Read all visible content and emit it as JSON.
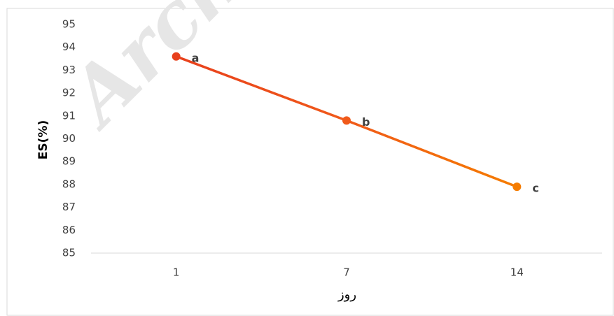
{
  "chart_data": {
    "type": "line",
    "watermark": "Arch",
    "xlabel": "روز",
    "ylabel": "ES(%)",
    "categories": [
      "1",
      "7",
      "14"
    ],
    "series": [
      {
        "name": "ES",
        "color": "#f57c00",
        "point_colors": [
          "#e8401c",
          "#f05a1a",
          "#f57c00"
        ],
        "values": [
          93.6,
          90.8,
          87.9
        ],
        "point_labels": [
          "a",
          "b",
          "c"
        ]
      }
    ],
    "ylim": [
      85,
      95
    ],
    "yticks": [
      85,
      86,
      87,
      88,
      89,
      90,
      91,
      92,
      93,
      94,
      95
    ],
    "grid": false
  }
}
